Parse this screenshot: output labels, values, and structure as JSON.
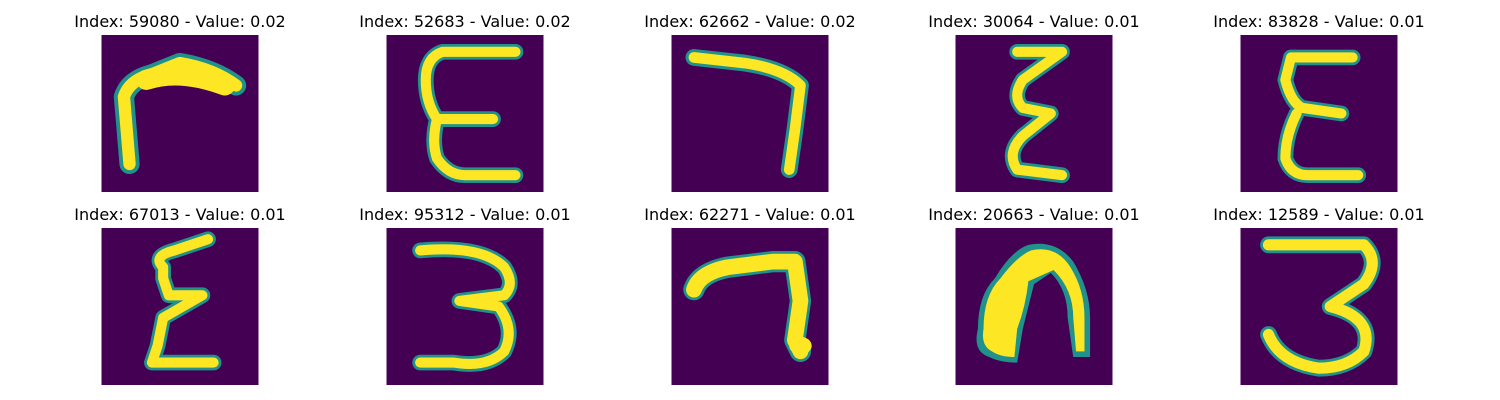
{
  "colors": {
    "background": "#440154",
    "stroke": "#fde725",
    "edge": "#21918c"
  },
  "tiles": [
    {
      "title": "Index: 59080 - Value: 0.02",
      "glyph": "seven-like-glyph"
    },
    {
      "title": "Index: 52683 - Value: 0.02",
      "glyph": "epsilon-like-glyph"
    },
    {
      "title": "Index: 62662 - Value: 0.02",
      "glyph": "seven-like-glyph"
    },
    {
      "title": "Index: 30064 - Value: 0.01",
      "glyph": "zig-zag-glyph"
    },
    {
      "title": "Index: 83828 - Value: 0.01",
      "glyph": "epsilon-like-glyph"
    },
    {
      "title": "Index: 67013 - Value: 0.01",
      "glyph": "zig-zag-glyph"
    },
    {
      "title": "Index: 95312 - Value: 0.01",
      "glyph": "three-like-glyph"
    },
    {
      "title": "Index: 62271 - Value: 0.01",
      "glyph": "seven-like-glyph"
    },
    {
      "title": "Index: 20663 - Value: 0.01",
      "glyph": "arch-glyph"
    },
    {
      "title": "Index: 12589 - Value: 0.01",
      "glyph": "three-like-glyph"
    }
  ]
}
